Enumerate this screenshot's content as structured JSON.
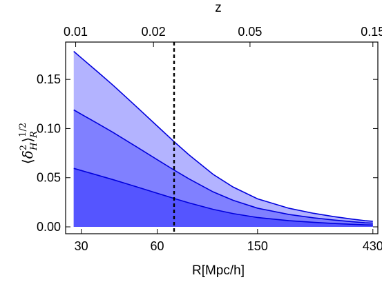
{
  "chart_data": {
    "type": "area",
    "title": "",
    "xlabel": "R[Mpc/h]",
    "ylabel": {
      "open": "⟨",
      "delta": "δ",
      "sup": "2",
      "sub": "H",
      "close": "⟩",
      "outer_sup": "1/2",
      "outer_sub": "R"
    },
    "top_axis_label": "z",
    "x_scale": "log",
    "xlim": [
      26,
      450
    ],
    "ylim": [
      -0.007,
      0.188
    ],
    "x_ticks": [
      30,
      60,
      150,
      430
    ],
    "x_tick_labels": [
      "30",
      "60",
      "150",
      "430"
    ],
    "y_ticks": [
      0,
      0.05,
      0.1,
      0.15
    ],
    "y_tick_labels": [
      "0.00",
      "0.05",
      "0.10",
      "0.15"
    ],
    "top_ticks_R": [
      28.5,
      58,
      140,
      430
    ],
    "top_tick_labels": [
      "0.01",
      "0.02",
      "0.05",
      "0.15"
    ],
    "vertical_line": {
      "x": 70,
      "style": "dashed"
    },
    "fill_colors": [
      "#5555ff",
      "#8080ff",
      "#b3b3ff"
    ],
    "line_color": "#0000dd",
    "series": [
      {
        "x": [
          28,
          30,
          35,
          40,
          45,
          50,
          60,
          70,
          80,
          100,
          120,
          150,
          200,
          250,
          300,
          350,
          400,
          430
        ],
        "values": [
          0.0595,
          0.0573,
          0.0524,
          0.0481,
          0.0441,
          0.0405,
          0.0342,
          0.0289,
          0.0245,
          0.0178,
          0.0135,
          0.0095,
          0.0063,
          0.0046,
          0.0035,
          0.0027,
          0.0021,
          0.0019
        ]
      },
      {
        "x": [
          28,
          30,
          35,
          40,
          45,
          50,
          60,
          70,
          80,
          100,
          120,
          150,
          200,
          250,
          300,
          350,
          400,
          430
        ],
        "values": [
          0.119,
          0.1146,
          0.1048,
          0.0962,
          0.0882,
          0.081,
          0.0684,
          0.0578,
          0.049,
          0.0356,
          0.027,
          0.019,
          0.0126,
          0.0092,
          0.007,
          0.0054,
          0.0042,
          0.0038
        ]
      },
      {
        "x": [
          28,
          30,
          35,
          40,
          45,
          50,
          60,
          70,
          80,
          100,
          120,
          150,
          200,
          250,
          300,
          350,
          400,
          430
        ],
        "values": [
          0.1785,
          0.1719,
          0.1572,
          0.1443,
          0.1323,
          0.1215,
          0.1026,
          0.0867,
          0.0735,
          0.0534,
          0.0405,
          0.0285,
          0.0189,
          0.0138,
          0.0105,
          0.0081,
          0.0063,
          0.0057
        ]
      }
    ]
  }
}
